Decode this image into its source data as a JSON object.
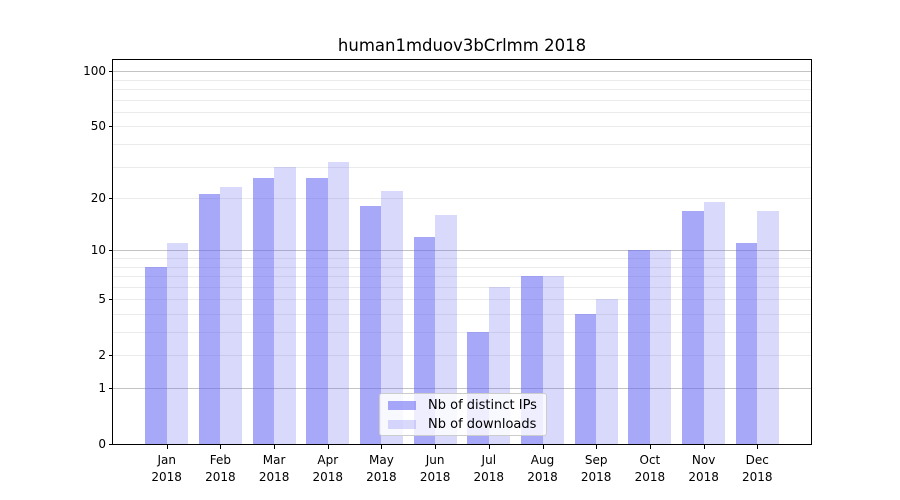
{
  "title": "human1mduov3bCrlmm 2018",
  "chart_data": {
    "type": "bar",
    "title": "human1mduov3bCrlmm 2018",
    "xlabel": "",
    "ylabel": "",
    "y_scale": "log1p",
    "ylim": [
      0,
      115
    ],
    "grid": "on",
    "legend_position": "lower center inside",
    "year": "2018",
    "categories": [
      "Jan",
      "Feb",
      "Mar",
      "Apr",
      "May",
      "Jun",
      "Jul",
      "Aug",
      "Sep",
      "Oct",
      "Nov",
      "Dec"
    ],
    "series": [
      {
        "name": "Nb of distinct IPs",
        "color": "rgba(102,102,245,0.57)",
        "values": [
          8,
          21,
          26,
          26,
          18,
          12,
          3,
          7,
          4,
          10,
          17,
          11
        ]
      },
      {
        "name": "Nb of downloads",
        "color": "rgba(102,102,245,0.25)",
        "values": [
          11,
          23,
          30,
          32,
          22,
          16,
          6,
          7,
          5,
          10,
          19,
          17
        ]
      }
    ],
    "y_ticks": [
      0,
      1,
      2,
      5,
      10,
      20,
      50,
      100
    ],
    "y_major_gridlines": [
      1,
      10,
      100
    ],
    "y_minor_gridlines": [
      2,
      3,
      4,
      5,
      6,
      7,
      8,
      9,
      20,
      30,
      40,
      50,
      60,
      70,
      80,
      90
    ]
  },
  "colors": {
    "spine": "#000000",
    "major_grid": "#c3c3c3",
    "minor_grid": "#ebebeb",
    "legend_border": "#cccccc"
  }
}
